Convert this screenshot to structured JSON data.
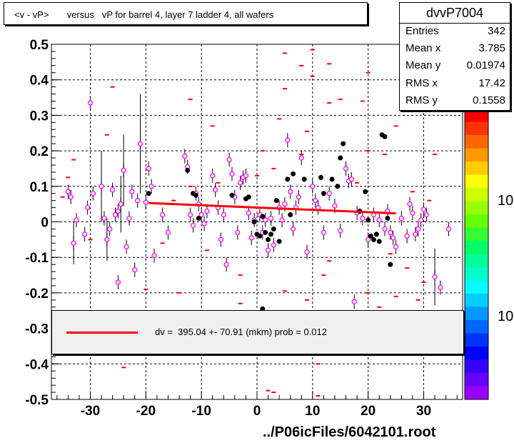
{
  "title": "<v - vP>       versus   vP for barrel 4, layer 7 ladder 4, all wafers",
  "stats": {
    "name": "dvvP7004",
    "rows": [
      {
        "key": "Entries",
        "value": "342"
      },
      {
        "key": "Mean x",
        "value": "3.785"
      },
      {
        "key": "Mean y",
        "value": "0.01974"
      },
      {
        "key": "RMS x",
        "value": "17.42"
      },
      {
        "key": "RMS y",
        "value": "0.1558"
      }
    ]
  },
  "fit": {
    "label": "dv =  395.04 +- 70.91 (mkm) prob = 0.012",
    "color": "#ff0000"
  },
  "footer": "../P06icFiles/6042101.root",
  "palette_labels": [
    "10",
    "10"
  ],
  "chart_data": {
    "type": "scatter",
    "xlim": [
      -37,
      37
    ],
    "ylim": [
      -0.5,
      0.5
    ],
    "x_ticks": [
      -30,
      -20,
      -10,
      0,
      10,
      20,
      30
    ],
    "x_tick_labels": [
      "-30",
      "-20",
      "-10",
      "0",
      "10",
      "20",
      "30"
    ],
    "y_ticks": [
      -0.5,
      -0.4,
      -0.3,
      -0.2,
      -0.1,
      0,
      0.1,
      0.2,
      0.3,
      0.4,
      0.5
    ],
    "y_tick_labels": [
      "-0.5",
      "-0.4",
      "-0.3",
      "-0.2",
      "-0.1",
      "0",
      "0.1",
      "0.2",
      "0.3",
      "0.4",
      "0.5"
    ],
    "grid": true,
    "fit_line": {
      "x": [
        -19.5,
        25
      ],
      "y": [
        0.053,
        0.024
      ]
    },
    "series": [
      {
        "marker": "open-circle",
        "color": "#ff00ff",
        "points": [
          {
            "x": -34,
            "y": 0.085
          },
          {
            "x": -33.5,
            "y": 0.07
          },
          {
            "x": -33,
            "y": -0.06,
            "err": 0.06
          },
          {
            "x": -32.5,
            "y": 0.005
          },
          {
            "x": -31,
            "y": -0.035
          },
          {
            "x": -30.5,
            "y": 0.04
          },
          {
            "x": -30,
            "y": 0.335
          },
          {
            "x": -29.5,
            "y": 0.08
          },
          {
            "x": -28,
            "y": 0.1,
            "err": 0.1
          },
          {
            "x": -27.5,
            "y": 0.01
          },
          {
            "x": -27,
            "y": -0.05,
            "err": 0.06
          },
          {
            "x": -26.5,
            "y": -0.02
          },
          {
            "x": -26,
            "y": 0.09
          },
          {
            "x": -25.5,
            "y": 0.02
          },
          {
            "x": -25,
            "y": 0.03
          },
          {
            "x": -24.5,
            "y": 0.05,
            "err": 0.08
          },
          {
            "x": -24,
            "y": 0.145,
            "err": 0.1
          },
          {
            "x": -23.5,
            "y": -0.07
          },
          {
            "x": -23,
            "y": 0.01
          },
          {
            "x": -22.5,
            "y": 0.085
          },
          {
            "x": -22,
            "y": -0.135
          },
          {
            "x": -21.5,
            "y": 0.06
          },
          {
            "x": -21,
            "y": 0.22,
            "err": 0.14
          },
          {
            "x": -20,
            "y": 0.055
          },
          {
            "x": -19.5,
            "y": 0.15
          },
          {
            "x": -19,
            "y": 0.1
          },
          {
            "x": -18.5,
            "y": -0.095
          },
          {
            "x": -17,
            "y": 0.02
          },
          {
            "x": -16,
            "y": -0.03
          },
          {
            "x": -13,
            "y": 0.185
          },
          {
            "x": -12.5,
            "y": 0.155
          },
          {
            "x": -12,
            "y": 0.02
          },
          {
            "x": -11.5,
            "y": -0.01
          },
          {
            "x": -11,
            "y": 0.08
          },
          {
            "x": -10.5,
            "y": 0.05
          },
          {
            "x": -10,
            "y": 0.02
          },
          {
            "x": -9.5,
            "y": -0.005
          },
          {
            "x": -9,
            "y": 0.03
          },
          {
            "x": -8,
            "y": 0.13
          },
          {
            "x": -7.5,
            "y": 0.09
          },
          {
            "x": -7,
            "y": 0.04
          },
          {
            "x": -6.5,
            "y": -0.05
          },
          {
            "x": -6,
            "y": 0.02
          },
          {
            "x": -5.5,
            "y": -0.12
          },
          {
            "x": -5,
            "y": 0.175
          },
          {
            "x": -4.5,
            "y": 0.135
          },
          {
            "x": -4,
            "y": 0.07
          },
          {
            "x": -3.5,
            "y": -0.03
          },
          {
            "x": -3,
            "y": 0.11
          },
          {
            "x": -2.5,
            "y": 0.125
          },
          {
            "x": -2,
            "y": 0.13
          },
          {
            "x": -1.5,
            "y": 0.025
          },
          {
            "x": -1,
            "y": -0.045
          },
          {
            "x": -0.5,
            "y": 0.005
          },
          {
            "x": 0.5,
            "y": 0.02
          },
          {
            "x": 1,
            "y": -0.03
          },
          {
            "x": 1.5,
            "y": 0.005
          },
          {
            "x": 2,
            "y": -0.08
          },
          {
            "x": 2.5,
            "y": 0.01
          },
          {
            "x": 3,
            "y": -0.065
          },
          {
            "x": 4,
            "y": 0.04
          },
          {
            "x": 4.5,
            "y": 0.005
          },
          {
            "x": 5,
            "y": 0.05
          },
          {
            "x": 5.5,
            "y": 0.23
          },
          {
            "x": 6,
            "y": 0.085
          },
          {
            "x": 6.5,
            "y": -0.02
          },
          {
            "x": 7,
            "y": 0.04
          },
          {
            "x": 7.5,
            "y": 0.07
          },
          {
            "x": 8,
            "y": 0.18
          },
          {
            "x": 9,
            "y": -0.085
          },
          {
            "x": 10,
            "y": 0.1
          },
          {
            "x": 10.5,
            "y": 0.06
          },
          {
            "x": 11,
            "y": 0.04
          },
          {
            "x": 12,
            "y": -0.03
          },
          {
            "x": 13,
            "y": 0.08
          },
          {
            "x": 14,
            "y": 0.045
          },
          {
            "x": 15,
            "y": -0.025
          },
          {
            "x": 16,
            "y": 0.15
          },
          {
            "x": 16.5,
            "y": 0.115
          },
          {
            "x": 17,
            "y": 0.12
          },
          {
            "x": 17.5,
            "y": -0.225
          },
          {
            "x": 18,
            "y": 0.025
          },
          {
            "x": 19,
            "y": 0.01
          },
          {
            "x": 20,
            "y": -0.05
          },
          {
            "x": 21,
            "y": 0.02
          },
          {
            "x": 22,
            "y": 0.005
          },
          {
            "x": 23,
            "y": -0.02
          },
          {
            "x": 23.5,
            "y": 0.03
          },
          {
            "x": 24,
            "y": -0.03
          },
          {
            "x": 24.5,
            "y": -0.045
          },
          {
            "x": 25,
            "y": -0.07
          },
          {
            "x": 26,
            "y": 0.01
          },
          {
            "x": 27,
            "y": -0.04
          },
          {
            "x": 27.5,
            "y": 0.05
          },
          {
            "x": 28,
            "y": 0.025
          },
          {
            "x": 28.5,
            "y": -0.035
          },
          {
            "x": 29,
            "y": -0.02
          },
          {
            "x": 29.5,
            "y": 0.005
          },
          {
            "x": 30,
            "y": 0.035
          },
          {
            "x": 30.5,
            "y": 0.02
          },
          {
            "x": 32,
            "y": -0.155,
            "err": 0.08
          },
          {
            "x": 33,
            "y": -0.185
          },
          {
            "x": 34.5,
            "y": -0.02
          },
          {
            "x": -25,
            "y": -0.17
          }
        ]
      },
      {
        "marker": "filled-circle",
        "color": "#000000",
        "points": [
          {
            "x": -19.5,
            "y": 0.08
          },
          {
            "x": -12.5,
            "y": 0.145
          },
          {
            "x": -11.5,
            "y": 0.08
          },
          {
            "x": -11,
            "y": 0.075
          },
          {
            "x": -10.5,
            "y": 0.01
          },
          {
            "x": -4.5,
            "y": 0.075
          },
          {
            "x": -2,
            "y": 0.065
          },
          {
            "x": -1.5,
            "y": 0.07
          },
          {
            "x": -0.5,
            "y": 0.0
          },
          {
            "x": 0,
            "y": -0.035
          },
          {
            "x": 0.5,
            "y": -0.04
          },
          {
            "x": 1,
            "y": 0.015
          },
          {
            "x": 1.5,
            "y": -0.03
          },
          {
            "x": 2,
            "y": -0.05
          },
          {
            "x": 2.5,
            "y": -0.035
          },
          {
            "x": 3,
            "y": -0.02
          },
          {
            "x": 3.5,
            "y": 0.06
          },
          {
            "x": 4,
            "y": -0.055
          },
          {
            "x": 5.5,
            "y": 0.12
          },
          {
            "x": 6,
            "y": 0.02
          },
          {
            "x": 6.5,
            "y": 0.135
          },
          {
            "x": 8.5,
            "y": 0.12
          },
          {
            "x": 11.5,
            "y": 0.125
          },
          {
            "x": 12,
            "y": 0.08
          },
          {
            "x": 13.5,
            "y": 0.12
          },
          {
            "x": 14.5,
            "y": 0.1
          },
          {
            "x": 15.5,
            "y": 0.22
          },
          {
            "x": 15,
            "y": 0.18
          },
          {
            "x": 19.5,
            "y": 0.085
          },
          {
            "x": 20,
            "y": 0.005
          },
          {
            "x": 20.5,
            "y": -0.04
          },
          {
            "x": 21,
            "y": -0.05
          },
          {
            "x": 21.5,
            "y": -0.035
          },
          {
            "x": 22,
            "y": -0.055
          },
          {
            "x": 22.5,
            "y": 0.245
          },
          {
            "x": 23,
            "y": 0.24
          },
          {
            "x": 23.5,
            "y": 0.01
          },
          {
            "x": 24,
            "y": -0.12
          },
          {
            "x": 18.5,
            "y": 0.03
          },
          {
            "x": 1,
            "y": -0.245
          }
        ]
      },
      {
        "marker": "dash",
        "color": "#ff0000",
        "points": [
          {
            "x": 5,
            "y": 0.475
          },
          {
            "x": 10,
            "y": 0.485
          },
          {
            "x": 8,
            "y": 0.44
          },
          {
            "x": 13,
            "y": 0.445
          },
          {
            "x": 20,
            "y": 0.42
          },
          {
            "x": 10,
            "y": 0.41
          },
          {
            "x": 5,
            "y": 0.375
          },
          {
            "x": 15,
            "y": 0.345
          },
          {
            "x": 19,
            "y": 0.34
          },
          {
            "x": -26,
            "y": 0.38
          },
          {
            "x": -12,
            "y": 0.345
          },
          {
            "x": 13,
            "y": 0.335
          },
          {
            "x": -27,
            "y": 0.245
          },
          {
            "x": -8,
            "y": 0.27
          },
          {
            "x": 4,
            "y": 0.29
          },
          {
            "x": 9,
            "y": 0.255
          },
          {
            "x": 25,
            "y": 0.27
          },
          {
            "x": 1,
            "y": 0.2
          },
          {
            "x": 8,
            "y": 0.19
          },
          {
            "x": 20,
            "y": 0.2
          },
          {
            "x": 23,
            "y": 0.19
          },
          {
            "x": -33,
            "y": 0.175
          },
          {
            "x": 32,
            "y": 0.19
          },
          {
            "x": -34,
            "y": 0.125
          },
          {
            "x": -7,
            "y": 0.11
          },
          {
            "x": 28,
            "y": 0.085
          },
          {
            "x": 31,
            "y": 0.06
          },
          {
            "x": -35,
            "y": 0.07
          },
          {
            "x": -17,
            "y": -0.06
          },
          {
            "x": -3,
            "y": -0.15
          },
          {
            "x": 12,
            "y": -0.15
          },
          {
            "x": 27,
            "y": -0.13
          },
          {
            "x": -14,
            "y": -0.2
          },
          {
            "x": 5,
            "y": -0.195
          },
          {
            "x": 9,
            "y": -0.22
          },
          {
            "x": 20,
            "y": -0.2
          },
          {
            "x": 25,
            "y": -0.21
          },
          {
            "x": -20,
            "y": -0.19
          },
          {
            "x": 30,
            "y": -0.17
          },
          {
            "x": -3,
            "y": -0.23
          },
          {
            "x": 22,
            "y": -0.24
          },
          {
            "x": 29,
            "y": -0.22
          },
          {
            "x": 11,
            "y": -0.4
          },
          {
            "x": -24,
            "y": -0.41
          },
          {
            "x": 3,
            "y": -0.48
          },
          {
            "x": 2,
            "y": -0.475
          },
          {
            "x": 11,
            "y": -0.49
          },
          {
            "x": -12,
            "y": 0.1
          },
          {
            "x": -15,
            "y": 0.06
          },
          {
            "x": 18,
            "y": 0.11
          },
          {
            "x": 0,
            "y": 0.13
          },
          {
            "x": 3,
            "y": 0.15
          },
          {
            "x": -9,
            "y": -0.08
          },
          {
            "x": 13,
            "y": -0.11
          },
          {
            "x": 24,
            "y": -0.09
          },
          {
            "x": -30,
            "y": -0.05
          }
        ]
      }
    ]
  }
}
